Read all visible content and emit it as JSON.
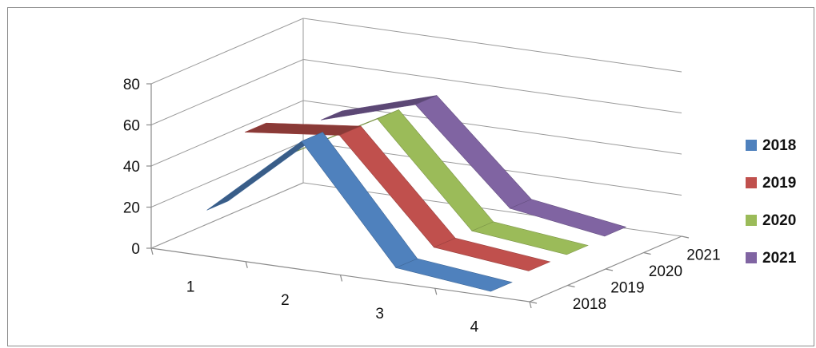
{
  "chart_data": {
    "type": "line",
    "three_d": true,
    "categories": [
      "1",
      "2",
      "3",
      "4"
    ],
    "series": [
      {
        "name": "2018",
        "values": [
          20,
          60,
          5,
          0
        ],
        "color": "#4f81bd"
      },
      {
        "name": "2019",
        "values": [
          50,
          55,
          7,
          2
        ],
        "color": "#c0504d"
      },
      {
        "name": "2020",
        "values": [
          30,
          55,
          7,
          2
        ],
        "color": "#9bbb59"
      },
      {
        "name": "2021",
        "values": [
          40,
          54,
          10,
          3
        ],
        "color": "#8064a2"
      }
    ],
    "ylim": [
      0,
      80
    ],
    "yticks": [
      "0",
      "20",
      "40",
      "60",
      "80"
    ],
    "depth_labels": [
      "2018",
      "2019",
      "2020",
      "2021"
    ],
    "grid": true,
    "legend_position": "right"
  }
}
